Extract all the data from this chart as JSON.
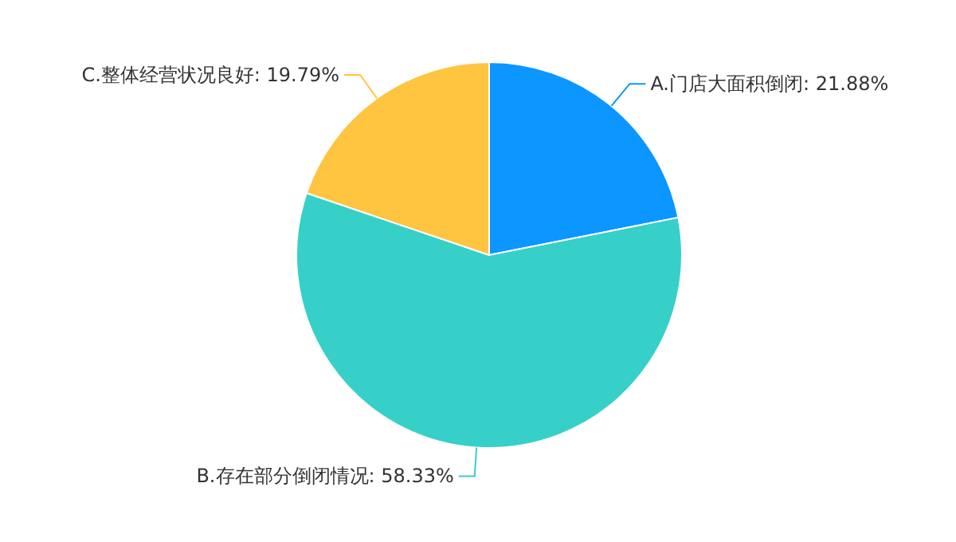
{
  "chart_data": {
    "type": "pie",
    "categories": [
      "A.门店大面积倒闭",
      "B.存在部分倒闭情况",
      "C.整体经营状况良好"
    ],
    "values": [
      21.88,
      58.33,
      19.79
    ],
    "value_labels": [
      "21.88%",
      "58.33%",
      "19.79%"
    ],
    "colors": [
      "#0c96ff",
      "#36d0c9",
      "#ffc440"
    ],
    "legend": false
  }
}
